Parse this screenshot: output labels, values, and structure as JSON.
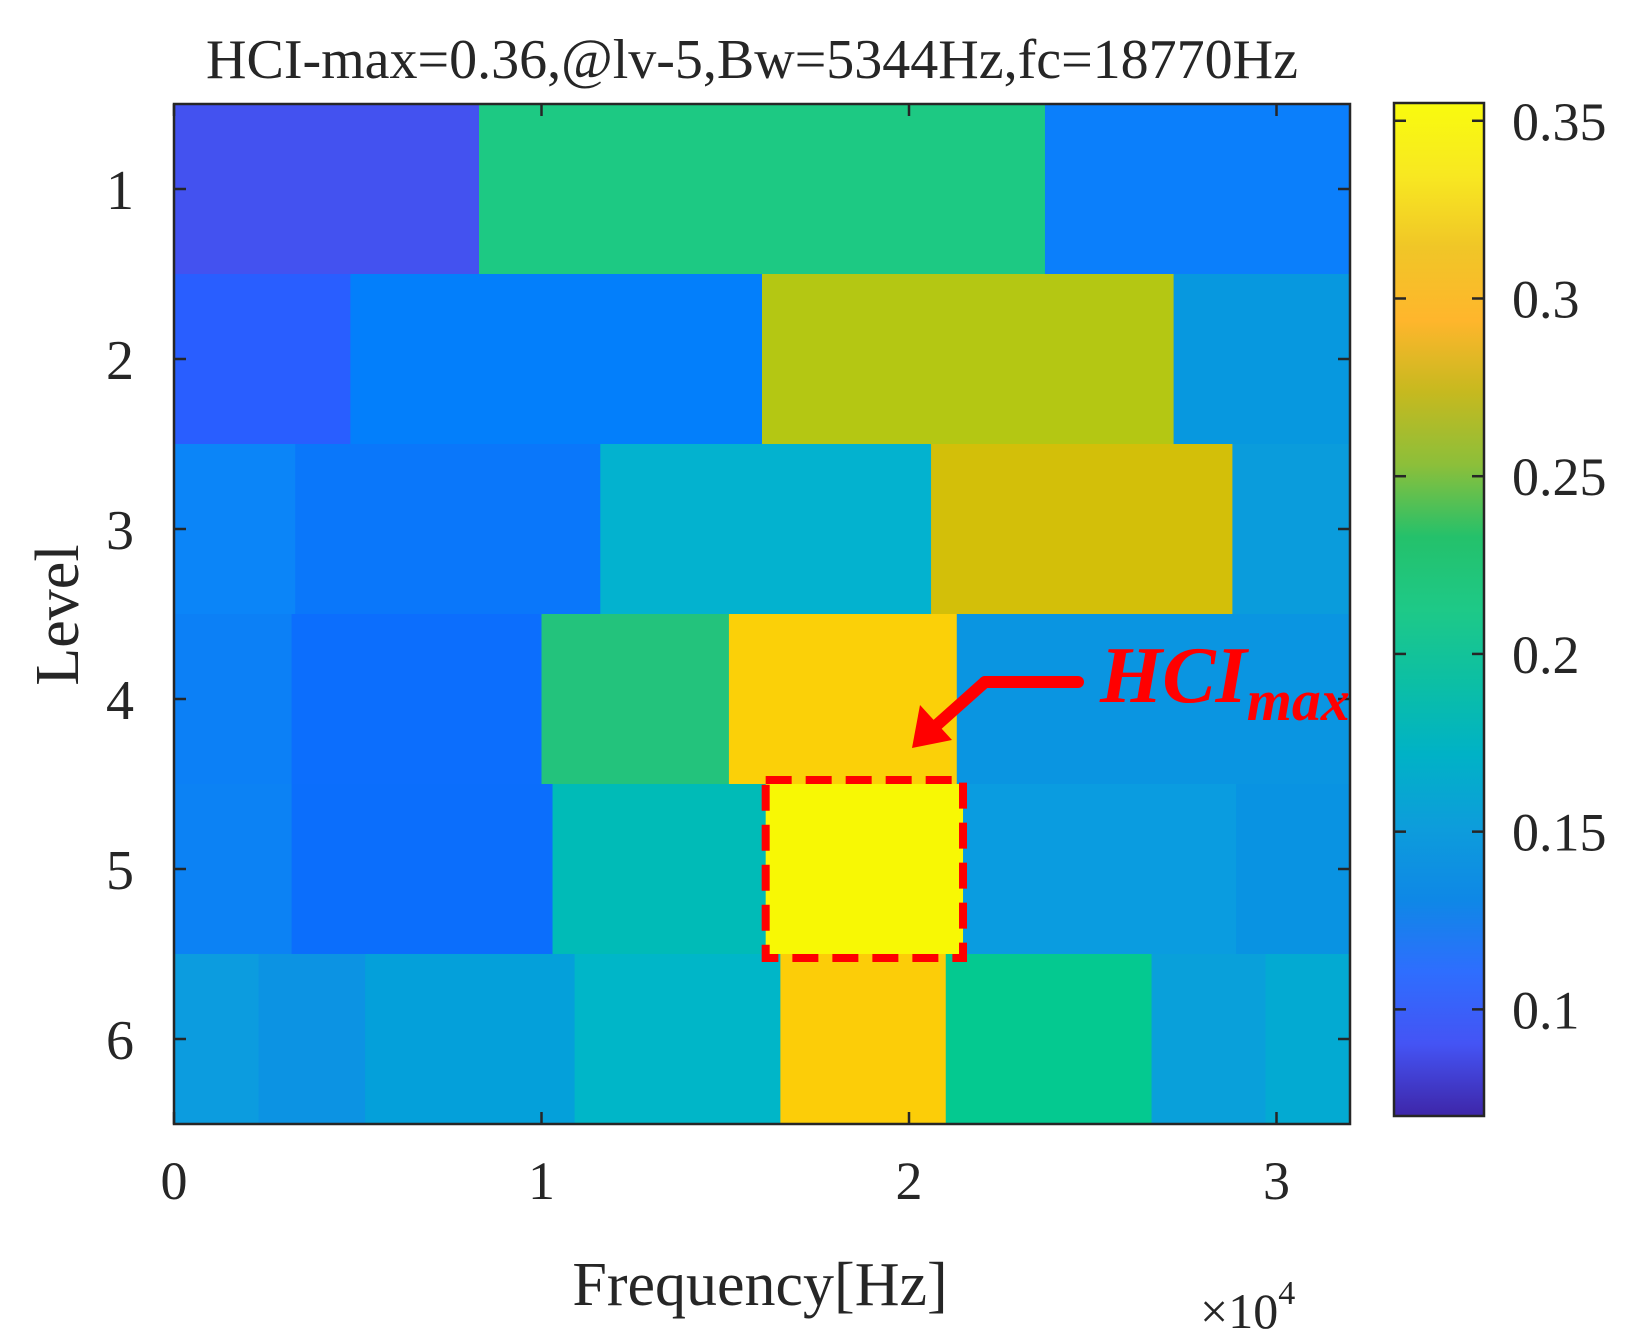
{
  "chart_data": {
    "type": "heatmap",
    "title": "HCI-max=0.36,@lv-5,Bw=5344Hz,fc=18770Hz",
    "xlabel": "Frequency[Hz]",
    "ylabel": "Level",
    "x_exponent_label": "×10",
    "x_exponent_power": "4",
    "xlim": [
      0,
      32000
    ],
    "x_ticks": [
      0,
      10000,
      20000,
      30000
    ],
    "x_tick_labels": [
      "0",
      "1",
      "2",
      "3"
    ],
    "y_ticks": [
      1,
      2,
      3,
      4,
      5,
      6
    ],
    "y_tick_labels": [
      "1",
      "2",
      "3",
      "4",
      "5",
      "6"
    ],
    "colorbar": {
      "range": [
        0.07,
        0.355
      ],
      "ticks": [
        0.1,
        0.15,
        0.2,
        0.25,
        0.3,
        0.35
      ],
      "tick_labels": [
        "0.1",
        "0.15",
        "0.2",
        "0.25",
        "0.3",
        "0.35"
      ],
      "colors": [
        "#3e26a8",
        "#4454f5",
        "#2e6efe",
        "#0e88e6",
        "#0d9ddb",
        "#00b2c6",
        "#0cbfa4",
        "#1ec987",
        "#24c16b",
        "#8cbf3a",
        "#c6b91f",
        "#ffb62c",
        "#f0c627",
        "#f8e821",
        "#f9fb0e"
      ]
    },
    "levels": [
      {
        "level": 1,
        "cells": [
          {
            "x0": 0,
            "x1": 8300,
            "value": 0.11,
            "color": "#4352f0"
          },
          {
            "x0": 8300,
            "x1": 23700,
            "value": 0.245,
            "color": "#1dc983"
          },
          {
            "x0": 23700,
            "x1": 32000,
            "value": 0.15,
            "color": "#0b7ffb"
          }
        ]
      },
      {
        "level": 2,
        "cells": [
          {
            "x0": 0,
            "x1": 4800,
            "value": 0.125,
            "color": "#295eff"
          },
          {
            "x0": 4800,
            "x1": 16000,
            "value": 0.15,
            "color": "#037ffb"
          },
          {
            "x0": 16000,
            "x1": 27200,
            "value": 0.275,
            "color": "#b4c713"
          },
          {
            "x0": 27200,
            "x1": 32000,
            "value": 0.18,
            "color": "#0798df"
          }
        ]
      },
      {
        "level": 3,
        "cells": [
          {
            "x0": 0,
            "x1": 3300,
            "value": 0.15,
            "color": "#0b85f8"
          },
          {
            "x0": 3300,
            "x1": 11600,
            "value": 0.15,
            "color": "#0a77fa"
          },
          {
            "x0": 11600,
            "x1": 20600,
            "value": 0.2,
            "color": "#03b2cf"
          },
          {
            "x0": 20600,
            "x1": 28800,
            "value": 0.31,
            "color": "#d3bf09"
          },
          {
            "x0": 28800,
            "x1": 32000,
            "value": 0.18,
            "color": "#0a9cdc"
          }
        ]
      },
      {
        "level": 4,
        "cells": [
          {
            "x0": 0,
            "x1": 3200,
            "value": 0.15,
            "color": "#0c80f6"
          },
          {
            "x0": 3200,
            "x1": 10000,
            "value": 0.14,
            "color": "#0c6efd"
          },
          {
            "x0": 10000,
            "x1": 15100,
            "value": 0.245,
            "color": "#23c37c"
          },
          {
            "x0": 15100,
            "x1": 21300,
            "value": 0.325,
            "color": "#fbd008"
          },
          {
            "x0": 21300,
            "x1": 32000,
            "value": 0.175,
            "color": "#0a95e1"
          }
        ]
      },
      {
        "level": 5,
        "cells": [
          {
            "x0": 0,
            "x1": 3200,
            "value": 0.15,
            "color": "#0c82f4"
          },
          {
            "x0": 3200,
            "x1": 10300,
            "value": 0.14,
            "color": "#0b6efc"
          },
          {
            "x0": 10300,
            "x1": 16100,
            "value": 0.215,
            "color": "#00bbb7"
          },
          {
            "x0": 16100,
            "x1": 21470,
            "value": 0.36,
            "color": "#f8f804"
          },
          {
            "x0": 21470,
            "x1": 28900,
            "value": 0.175,
            "color": "#0a9ce0"
          },
          {
            "x0": 28900,
            "x1": 32000,
            "value": 0.175,
            "color": "#0993e2"
          }
        ]
      },
      {
        "level": 6,
        "cells": [
          {
            "x0": 0,
            "x1": 2300,
            "value": 0.18,
            "color": "#0c9cdf"
          },
          {
            "x0": 2300,
            "x1": 5200,
            "value": 0.175,
            "color": "#0c93e3"
          },
          {
            "x0": 5200,
            "x1": 10900,
            "value": 0.185,
            "color": "#04a0da"
          },
          {
            "x0": 10900,
            "x1": 16500,
            "value": 0.205,
            "color": "#00b6c8"
          },
          {
            "x0": 16500,
            "x1": 21000,
            "value": 0.325,
            "color": "#fccd08"
          },
          {
            "x0": 21000,
            "x1": 26600,
            "value": 0.25,
            "color": "#04c990"
          },
          {
            "x0": 26600,
            "x1": 29700,
            "value": 0.18,
            "color": "#09a0da"
          },
          {
            "x0": 29700,
            "x1": 32000,
            "value": 0.195,
            "color": "#03aad2"
          }
        ]
      }
    ],
    "highlight": {
      "level": 5,
      "x0": 16100,
      "x1": 21470
    },
    "annotation": {
      "text": "HCI",
      "subscript": "max"
    }
  }
}
